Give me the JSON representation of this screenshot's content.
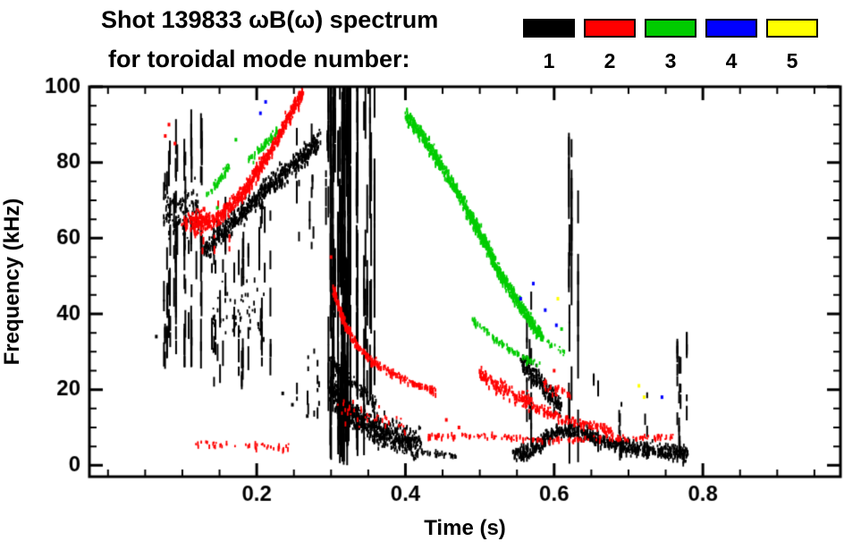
{
  "chart_data": {
    "type": "scatter",
    "variant": "magnetic-mode-spectrogram",
    "title": "Shot 139833 ωB(ω) spectrum",
    "subtitle": "for toroidal mode number:",
    "xlabel": "Time (s)",
    "ylabel": "Frequency (kHz)",
    "background": "#ffffff",
    "axis_color": "#000000",
    "xlim": [
      -0.025,
      0.985
    ],
    "ylim": [
      -3,
      100
    ],
    "xticks": [
      0.2,
      0.4,
      0.6,
      0.8
    ],
    "xtick_labels": [
      "0.2",
      "0.4",
      "0.6",
      "0.8"
    ],
    "yticks": [
      0,
      20,
      40,
      60,
      80,
      100
    ],
    "x_minor_step": 0.05,
    "y_minor_step": 5,
    "legend_position": "top-right",
    "modes": [
      {
        "n": 1,
        "label": "1",
        "color": "#000000",
        "tracks": [
          {
            "pts": [
              [
                0.13,
                57
              ],
              [
                0.17,
                65
              ],
              [
                0.21,
                73
              ],
              [
                0.25,
                80
              ],
              [
                0.285,
                86
              ]
            ],
            "w": 4.5,
            "d": 3.5
          },
          {
            "pts": [
              [
                0.075,
                67
              ],
              [
                0.125,
                68
              ]
            ],
            "w": 12,
            "d": 3.0
          },
          {
            "pts": [
              [
                0.14,
                40
              ],
              [
                0.21,
                42
              ]
            ],
            "w": 13,
            "d": 0.9
          },
          {
            "pts": [
              [
                0.298,
                21
              ],
              [
                0.32,
                15
              ],
              [
                0.35,
                11
              ],
              [
                0.385,
                8
              ],
              [
                0.42,
                6
              ]
            ],
            "w": 6.5,
            "d": 5.5
          },
          {
            "pts": [
              [
                0.3,
                28
              ],
              [
                0.33,
                22
              ],
              [
                0.36,
                17
              ]
            ],
            "w": 3,
            "d": 2.0
          },
          {
            "pts": [
              [
                0.42,
                4
              ],
              [
                0.47,
                3
              ]
            ],
            "w": 1.2,
            "d": 0.8
          },
          {
            "pts": [
              [
                0.545,
                3
              ],
              [
                0.575,
                5
              ],
              [
                0.6,
                9
              ],
              [
                0.625,
                10
              ],
              [
                0.65,
                8
              ],
              [
                0.68,
                6
              ],
              [
                0.72,
                4.5
              ],
              [
                0.78,
                3.5
              ]
            ],
            "w": 3.5,
            "d": 3.5
          },
          {
            "pts": [
              [
                0.555,
                27
              ],
              [
                0.575,
                24
              ],
              [
                0.595,
                19
              ],
              [
                0.61,
                16
              ]
            ],
            "w": 4.5,
            "d": 3.0
          }
        ],
        "vlines": [
          {
            "t0": 0.073,
            "t1": 0.128,
            "f0": 25,
            "f1": 85,
            "n": 26,
            "sm": [
              2,
              5
            ]
          },
          {
            "t0": 0.135,
            "t1": 0.225,
            "f0": 20,
            "f1": 65,
            "n": 20,
            "sm": [
              2,
              5
            ]
          },
          {
            "t0": 0.23,
            "t1": 0.29,
            "f0": 12,
            "f1": 30,
            "n": 6,
            "sm": [
              2,
              4
            ]
          },
          {
            "t0": 0.25,
            "t1": 0.295,
            "f0": 55,
            "f1": 88,
            "n": 8,
            "sm": [
              2,
              4
            ]
          },
          {
            "t0": 0.295,
            "t1": 0.327,
            "f0": 0,
            "f1": 100,
            "n": 26,
            "sm": [
              7,
              13
            ]
          },
          {
            "t0": 0.33,
            "t1": 0.362,
            "f0": 0,
            "f1": 100,
            "n": 10,
            "sm": [
              5,
              10
            ]
          },
          {
            "t0": 0.562,
            "t1": 0.568,
            "f0": 0,
            "f1": 42,
            "n": 3,
            "sm": [
              3,
              6
            ]
          },
          {
            "t0": 0.618,
            "t1": 0.632,
            "f0": 0,
            "f1": 87,
            "n": 4,
            "sm": [
              5,
              9
            ]
          },
          {
            "t0": 0.652,
            "t1": 0.658,
            "f0": 0,
            "f1": 26,
            "n": 2,
            "sm": [
              2,
              5
            ]
          },
          {
            "t0": 0.682,
            "t1": 0.69,
            "f0": 0,
            "f1": 20,
            "n": 3,
            "sm": [
              2,
              5
            ]
          },
          {
            "t0": 0.718,
            "t1": 0.724,
            "f0": 0,
            "f1": 18,
            "n": 2,
            "sm": [
              2,
              5
            ]
          },
          {
            "t0": 0.763,
            "t1": 0.778,
            "f0": 0,
            "f1": 35,
            "n": 5,
            "sm": [
              3,
              7
            ]
          }
        ],
        "dots": [
          [
            0.065,
            34
          ],
          [
            0.235,
            19
          ],
          [
            0.248,
            16
          ],
          [
            0.268,
            13
          ]
        ]
      },
      {
        "n": 2,
        "label": "2",
        "color": "#ff0000",
        "tracks": [
          {
            "pts": [
              [
                0.115,
                63
              ],
              [
                0.15,
                66
              ],
              [
                0.185,
                73
              ],
              [
                0.22,
                84
              ],
              [
                0.25,
                95
              ],
              [
                0.262,
                99
              ]
            ],
            "w": 3.5,
            "d": 3.2
          },
          {
            "pts": [
              [
                0.1,
                65
              ],
              [
                0.14,
                66
              ]
            ],
            "w": 4,
            "d": 2.5
          },
          {
            "pts": [
              [
                0.303,
                47
              ],
              [
                0.318,
                38
              ],
              [
                0.335,
                32
              ],
              [
                0.355,
                28
              ],
              [
                0.38,
                25
              ],
              [
                0.41,
                22
              ],
              [
                0.44,
                20
              ]
            ],
            "w": 1.6,
            "d": 1.8
          },
          {
            "pts": [
              [
                0.31,
                16
              ],
              [
                0.35,
                13
              ],
              [
                0.4,
                11
              ]
            ],
            "w": 5,
            "d": 0.5
          },
          {
            "pts": [
              [
                0.43,
                8
              ],
              [
                0.52,
                8
              ],
              [
                0.6,
                7
              ],
              [
                0.68,
                7.5
              ],
              [
                0.765,
                8
              ]
            ],
            "w": 1.3,
            "d": 0.6
          },
          {
            "pts": [
              [
                0.115,
                6
              ],
              [
                0.18,
                6
              ],
              [
                0.25,
                5
              ]
            ],
            "w": 1.5,
            "d": 0.4
          },
          {
            "pts": [
              [
                0.5,
                25
              ],
              [
                0.52,
                22
              ],
              [
                0.545,
                19
              ],
              [
                0.57,
                17
              ]
            ],
            "w": 3.5,
            "d": 2.4
          },
          {
            "pts": [
              [
                0.57,
                16
              ],
              [
                0.61,
                13
              ],
              [
                0.65,
                11
              ],
              [
                0.68,
                9.5
              ]
            ],
            "w": 2,
            "d": 1.5
          },
          {
            "pts": [
              [
                0.585,
                22
              ],
              [
                0.625,
                19
              ]
            ],
            "w": 2.5,
            "d": 0.8
          }
        ],
        "vlines": [
          {
            "t0": 0.125,
            "t1": 0.165,
            "f0": 55,
            "f1": 68,
            "n": 5,
            "sm": [
              2,
              3
            ]
          }
        ],
        "dots": [
          [
            0.077,
            87
          ],
          [
            0.082,
            90
          ],
          [
            0.09,
            85
          ],
          [
            0.455,
            12
          ],
          [
            0.472,
            10
          ],
          [
            0.3,
            55
          ],
          [
            0.6,
            25
          ]
        ]
      },
      {
        "n": 3,
        "label": "3",
        "color": "#00cc00",
        "tracks": [
          {
            "pts": [
              [
                0.4,
                93
              ],
              [
                0.425,
                87
              ],
              [
                0.45,
                79
              ],
              [
                0.475,
                71
              ],
              [
                0.5,
                62
              ],
              [
                0.525,
                52
              ],
              [
                0.55,
                44
              ],
              [
                0.57,
                38
              ],
              [
                0.585,
                34
              ]
            ],
            "w": 3,
            "d": 3.4
          },
          {
            "pts": [
              [
                0.49,
                39
              ],
              [
                0.52,
                34
              ],
              [
                0.55,
                30
              ],
              [
                0.58,
                27
              ]
            ],
            "w": 1.3,
            "d": 0.9
          },
          {
            "pts": [
              [
                0.133,
                72
              ],
              [
                0.15,
                76
              ],
              [
                0.162,
                79
              ]
            ],
            "w": 1.8,
            "d": 1.2
          },
          {
            "pts": [
              [
                0.19,
                81
              ],
              [
                0.21,
                85
              ],
              [
                0.228,
                89
              ]
            ],
            "w": 1.8,
            "d": 1.1
          },
          {
            "pts": [
              [
                0.59,
                33
              ],
              [
                0.615,
                30
              ]
            ],
            "w": 1.5,
            "d": 0.6
          }
        ],
        "vlines": [],
        "dots": [
          [
            0.172,
            86
          ],
          [
            0.147,
            68
          ],
          [
            0.61,
            36
          ]
        ]
      },
      {
        "n": 4,
        "label": "4",
        "color": "#0000ff",
        "tracks": [],
        "vlines": [],
        "dots": [
          [
            0.205,
            93
          ],
          [
            0.212,
            96
          ],
          [
            0.555,
            44
          ],
          [
            0.572,
            48
          ],
          [
            0.588,
            41
          ],
          [
            0.603,
            37
          ],
          [
            0.745,
            18
          ]
        ]
      },
      {
        "n": 5,
        "label": "5",
        "color": "#ffff00",
        "tracks": [],
        "vlines": [],
        "dots": [
          [
            0.605,
            44
          ],
          [
            0.714,
            21
          ],
          [
            0.721,
            18
          ]
        ]
      }
    ]
  }
}
